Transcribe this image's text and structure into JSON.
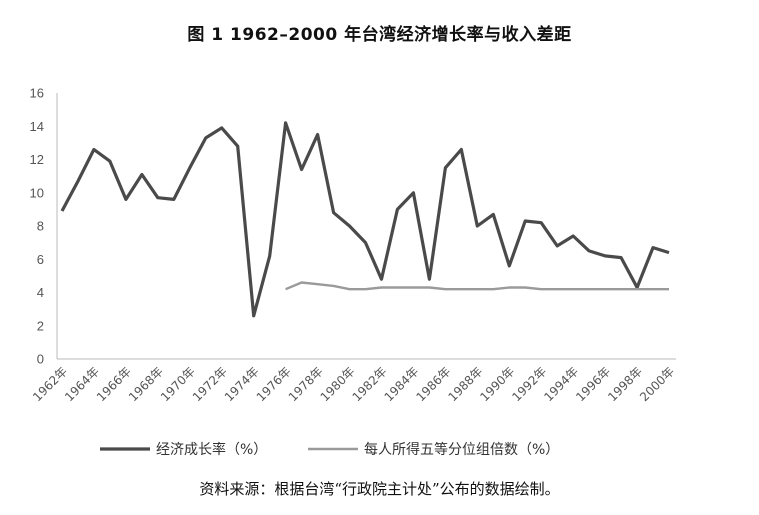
{
  "title": "图 1 1962–2000 年台湾经济增长率与收入差距",
  "source_note": "资料来源：根据台湾“行政院主计处”公布的数据绘制。",
  "chart_data": {
    "type": "line",
    "title": "图 1 1962–2000 年台湾经济增长率与收入差距",
    "xlabel": "",
    "ylabel": "",
    "ylim": [
      0,
      16
    ],
    "yticks": [
      0,
      2,
      4,
      6,
      8,
      10,
      12,
      14,
      16
    ],
    "x": [
      1962,
      1963,
      1964,
      1965,
      1966,
      1967,
      1968,
      1969,
      1970,
      1971,
      1972,
      1973,
      1974,
      1975,
      1976,
      1977,
      1978,
      1979,
      1980,
      1981,
      1982,
      1983,
      1984,
      1985,
      1986,
      1987,
      1988,
      1989,
      1990,
      1991,
      1992,
      1993,
      1994,
      1995,
      1996,
      1997,
      1998,
      1999,
      2000
    ],
    "xtick_labels": [
      "1962年",
      "1964年",
      "1966年",
      "1968年",
      "1970年",
      "1972年",
      "1974年",
      "1976年",
      "1978年",
      "1980年",
      "1982年",
      "1984年",
      "1986年",
      "1988年",
      "1990年",
      "1992年",
      "1994年",
      "1996年",
      "1998年",
      "2000年"
    ],
    "grid": false,
    "legend_position": "bottom",
    "series": [
      {
        "name": "经济成长率（%）",
        "color": "#4a4a4a",
        "values": [
          8.9,
          10.7,
          12.6,
          11.9,
          9.6,
          11.1,
          9.7,
          9.6,
          11.5,
          13.3,
          13.9,
          12.8,
          2.6,
          6.2,
          14.2,
          11.4,
          13.5,
          8.8,
          8.0,
          7.0,
          4.8,
          9.0,
          10.0,
          4.8,
          11.5,
          12.6,
          8.0,
          8.7,
          5.6,
          8.3,
          8.2,
          6.8,
          7.4,
          6.5,
          6.2,
          6.1,
          4.3,
          6.7,
          6.4
        ]
      },
      {
        "name": "每人所得五等分位组倍数（%）",
        "color": "#9a9a9a",
        "values": [
          null,
          null,
          null,
          null,
          null,
          null,
          null,
          null,
          null,
          null,
          null,
          null,
          null,
          null,
          4.2,
          4.6,
          4.5,
          4.4,
          4.2,
          4.2,
          4.3,
          4.3,
          4.3,
          4.3,
          4.2,
          4.2,
          4.2,
          4.2,
          4.3,
          4.3,
          4.2,
          4.2,
          4.2,
          4.2,
          4.2,
          4.2,
          4.2,
          4.2,
          4.2
        ]
      }
    ]
  }
}
